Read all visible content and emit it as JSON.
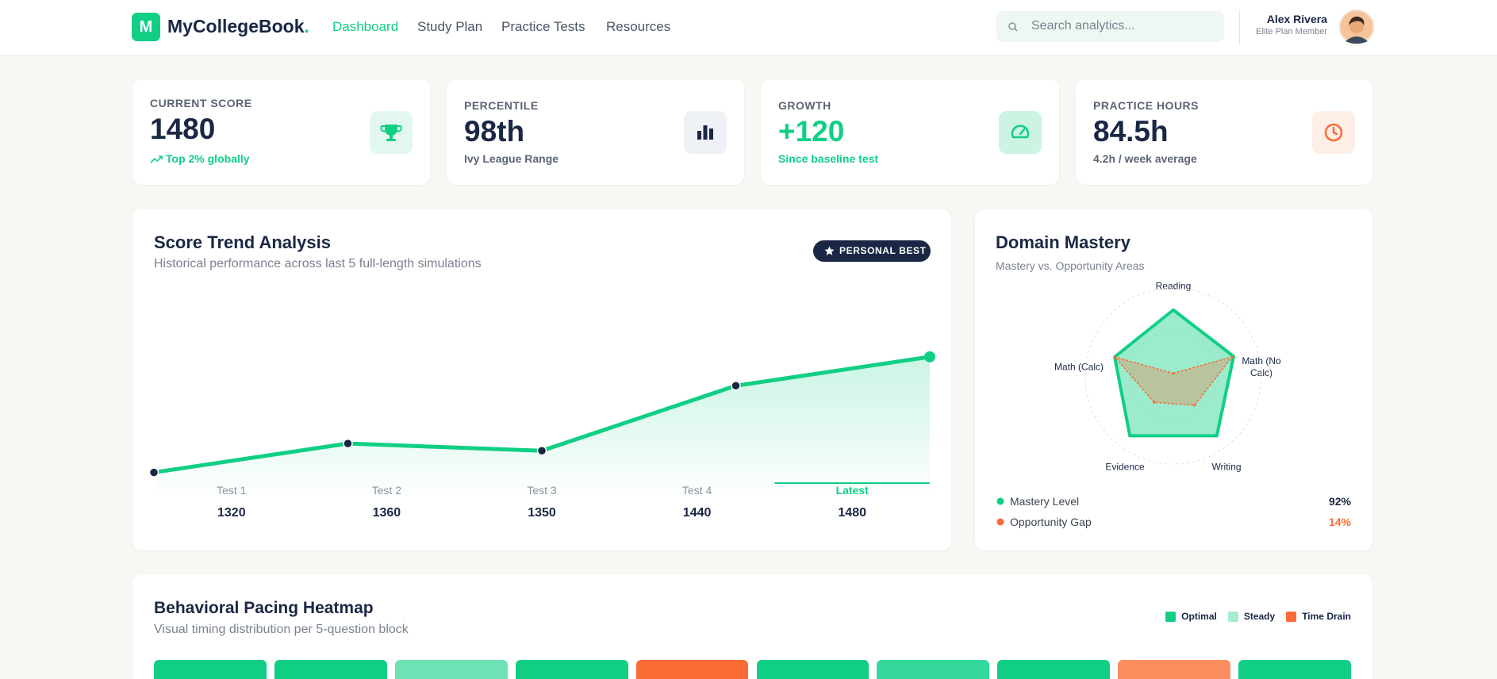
{
  "header": {
    "logo": "M",
    "brand": "MyCollegeBook",
    "brand_dot": ".",
    "nav": [
      "Dashboard",
      "Study Plan",
      "Practice Tests",
      "Resources"
    ],
    "search_placeholder": "Search analytics...",
    "user_name": "Alex Rivera",
    "user_plan": "Elite Plan Member"
  },
  "stats": [
    {
      "label": "CURRENT SCORE",
      "value": "1480",
      "note": "Top 2% globally"
    },
    {
      "label": "PERCENTILE",
      "value": "98th",
      "note": "Ivy League Range"
    },
    {
      "label": "GROWTH",
      "value": "+120",
      "note": "Since baseline test"
    },
    {
      "label": "PRACTICE HOURS",
      "value": "84.5h",
      "note": "4.2h / week average"
    }
  ],
  "chart_data": [
    {
      "type": "line",
      "title": "Score Trend Analysis",
      "subtitle": "Historical performance across last 5 full-length simulations",
      "annotation": "PERSONAL BEST",
      "categories": [
        "Test 1",
        "Test 2",
        "Test 3",
        "Test 4",
        "Latest"
      ],
      "values": [
        1320,
        1360,
        1350,
        1440,
        1480
      ],
      "ylim": [
        1280,
        1560
      ],
      "color": "#10cf85"
    },
    {
      "type": "radar",
      "title": "Domain Mastery",
      "subtitle": "Mastery vs. Opportunity Areas",
      "categories": [
        "Reading",
        "Math (No Calc)",
        "Writing",
        "Evidence",
        "Math (Calc)"
      ],
      "rlim": [
        0,
        100
      ],
      "series": [
        {
          "name": "Mastery Level",
          "color": "#10cf85",
          "values": [
            75,
            72,
            84,
            84,
            70
          ],
          "legend_value": "92%"
        },
        {
          "name": "Opportunity Gap",
          "color": "#fb6b35",
          "values": [
            3,
            70,
            41,
            37,
            70
          ],
          "legend_value": "14%"
        }
      ]
    }
  ],
  "heatmap": {
    "title": "Behavioral Pacing Heatmap",
    "subtitle": "Visual timing distribution per 5-question block",
    "legend": [
      {
        "name": "Optimal",
        "color": "#10cf85"
      },
      {
        "name": "Steady",
        "color": "#a6ecd0"
      },
      {
        "name": "Time Drain",
        "color": "#fb6b35"
      }
    ],
    "blocks": [
      "#10cf85",
      "#10cf85",
      "#6ee2b5",
      "#10cf85",
      "#fb6b35",
      "#10cf85",
      "#34d89b",
      "#10cf85",
      "#fd8c5e",
      "#10cf85"
    ]
  }
}
